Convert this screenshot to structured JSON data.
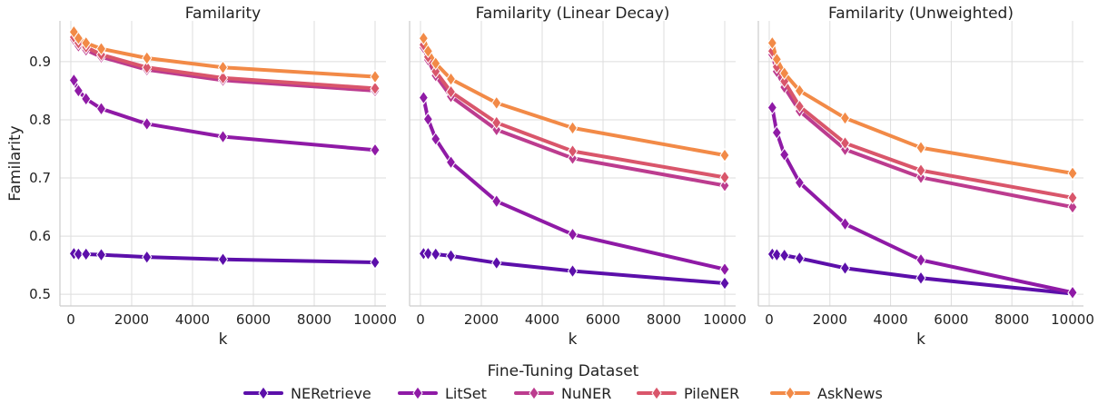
{
  "chart_data": {
    "type": "line",
    "legend": {
      "title": "Fine-Tuning Dataset",
      "placement": "bottom-center"
    },
    "grid": true,
    "ylabel": "Familarity",
    "xlim": [
      0,
      10000
    ],
    "ylim": [
      0.48,
      0.97
    ],
    "xticks": [
      0,
      2000,
      4000,
      6000,
      8000,
      10000
    ],
    "yticks": [
      0.5,
      0.6,
      0.7,
      0.8,
      0.9
    ],
    "ytick_labels": [
      "0.5",
      "0.6",
      "0.7",
      "0.8",
      "0.9"
    ],
    "x": [
      100,
      250,
      500,
      1000,
      2500,
      5000,
      10000
    ],
    "series_colors": {
      "NERetrieve": "#5c0faa",
      "LitSet": "#8f1aa6",
      "NuNER": "#bc3c8f",
      "PileNER": "#d9566b",
      "AskNews": "#f28a47"
    },
    "panels": [
      {
        "title": "Familarity",
        "xlabel": "k",
        "series": [
          {
            "name": "NERetrieve",
            "values": [
              0.57,
              0.569,
              0.569,
              0.568,
              0.564,
              0.56,
              0.555
            ]
          },
          {
            "name": "LitSet",
            "values": [
              0.868,
              0.85,
              0.836,
              0.819,
              0.793,
              0.771,
              0.748
            ]
          },
          {
            "name": "NuNER",
            "values": [
              0.938,
              0.927,
              0.92,
              0.908,
              0.886,
              0.868,
              0.85
            ]
          },
          {
            "name": "PileNER",
            "values": [
              0.942,
              0.932,
              0.925,
              0.912,
              0.89,
              0.872,
              0.854
            ]
          },
          {
            "name": "AskNews",
            "values": [
              0.951,
              0.94,
              0.932,
              0.922,
              0.906,
              0.89,
              0.874
            ]
          }
        ]
      },
      {
        "title": "Familarity (Linear Decay)",
        "xlabel": "k",
        "series": [
          {
            "name": "NERetrieve",
            "values": [
              0.57,
              0.57,
              0.569,
              0.566,
              0.554,
              0.54,
              0.519
            ]
          },
          {
            "name": "LitSet",
            "values": [
              0.838,
              0.801,
              0.767,
              0.727,
              0.66,
              0.603,
              0.543
            ]
          },
          {
            "name": "NuNER",
            "values": [
              0.924,
              0.903,
              0.876,
              0.84,
              0.783,
              0.734,
              0.687
            ]
          },
          {
            "name": "PileNER",
            "values": [
              0.929,
              0.908,
              0.883,
              0.848,
              0.795,
              0.746,
              0.701
            ]
          },
          {
            "name": "AskNews",
            "values": [
              0.94,
              0.918,
              0.897,
              0.87,
              0.829,
              0.786,
              0.739
            ]
          }
        ]
      },
      {
        "title": "Familarity (Unweighted)",
        "xlabel": "k",
        "series": [
          {
            "name": "NERetrieve",
            "values": [
              0.569,
              0.568,
              0.567,
              0.562,
              0.545,
              0.528,
              0.501
            ]
          },
          {
            "name": "LitSet",
            "values": [
              0.821,
              0.778,
              0.74,
              0.692,
              0.621,
              0.559,
              0.503
            ]
          },
          {
            "name": "NuNER",
            "values": [
              0.912,
              0.883,
              0.856,
              0.815,
              0.749,
              0.701,
              0.65
            ]
          },
          {
            "name": "PileNER",
            "values": [
              0.918,
              0.891,
              0.866,
              0.823,
              0.76,
              0.713,
              0.666
            ]
          },
          {
            "name": "AskNews",
            "values": [
              0.932,
              0.904,
              0.88,
              0.85,
              0.803,
              0.752,
              0.708
            ]
          }
        ]
      }
    ]
  }
}
